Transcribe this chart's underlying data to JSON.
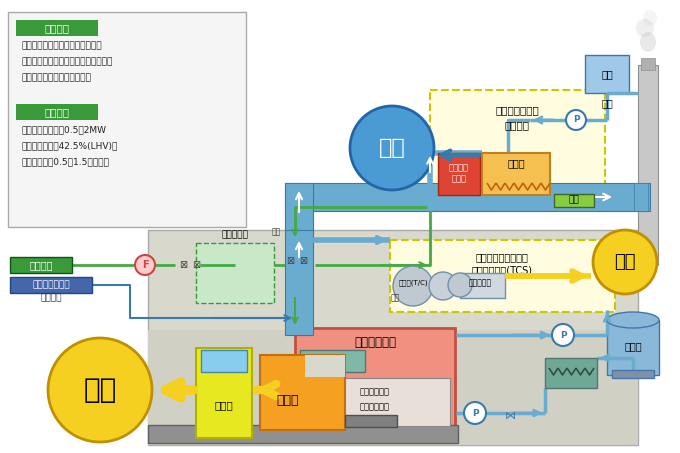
{
  "bg": "#ffffff",
  "c": {
    "pipe_blue": "#6aaccf",
    "pipe_dark": "#3a7aaa",
    "green_label": "#3a9a3a",
    "green_pipe": "#44aa44",
    "green_pipe_dark": "#227722",
    "yellow_dashed_bg": "#fffce0",
    "yellow_dashed_border": "#c8c800",
    "orange": "#f5a020",
    "red_engine": "#e86050",
    "pink_engine": "#f09080",
    "yellow_circle": "#f5d020",
    "blue_circle": "#4a9ad4",
    "gray_bg": "#d4d4cc",
    "gray_dark": "#888888",
    "chimney": "#b8b8b8",
    "condensate_blue": "#a0c8e8",
    "cooling_tower_blue": "#8ab8d8",
    "switchboard_yellow": "#e8e820",
    "pipe_arrow": "#3a6a9a",
    "teal_cooler": "#80b8a8",
    "heat_exchanger": "#70a898"
  },
  "info": {
    "s1_label": "開発要素",
    "s1_items": [
      "１．高効率・高出力ガスエンジン",
      "２．排気エネルギー動力回収システム",
      "３．排気再燃ボイラシステム"
    ],
    "s2_label": "目標性能",
    "s2_items": [
      "１．出力レンジ：0.5〜2MW",
      "２．発電効率：42.5%(LHV)、",
      "３．熱電比：0.5〜1.5独立可変"
    ]
  }
}
